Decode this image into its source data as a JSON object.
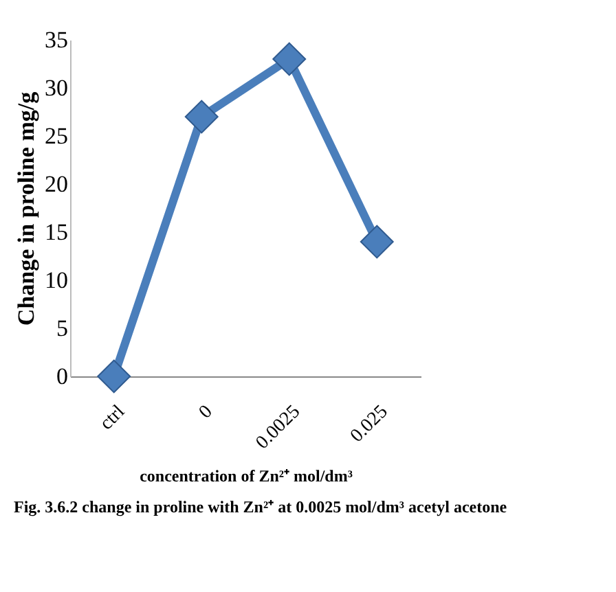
{
  "chart_data": {
    "type": "line",
    "categories": [
      "ctrl",
      "0",
      "0.0025",
      "0.025"
    ],
    "series": [
      {
        "color": "#4a7ebb",
        "values": [
          0,
          27,
          33,
          14
        ]
      }
    ],
    "ylabel": "Change in proline mg/g",
    "xlabel": "concentration of Zn²⁺ mol/dm³",
    "annotations": [
      "Fig. 3.6.2 change in proline with Zn²⁺ at 0.0025 mol/dm³ acetyl acetone"
    ],
    "ylim": [
      0,
      35
    ],
    "yticks": [
      0,
      5,
      10,
      15,
      20,
      25,
      30,
      35
    ],
    "grid": false,
    "legend": false,
    "marker": "diamond",
    "line_style": "solid"
  }
}
